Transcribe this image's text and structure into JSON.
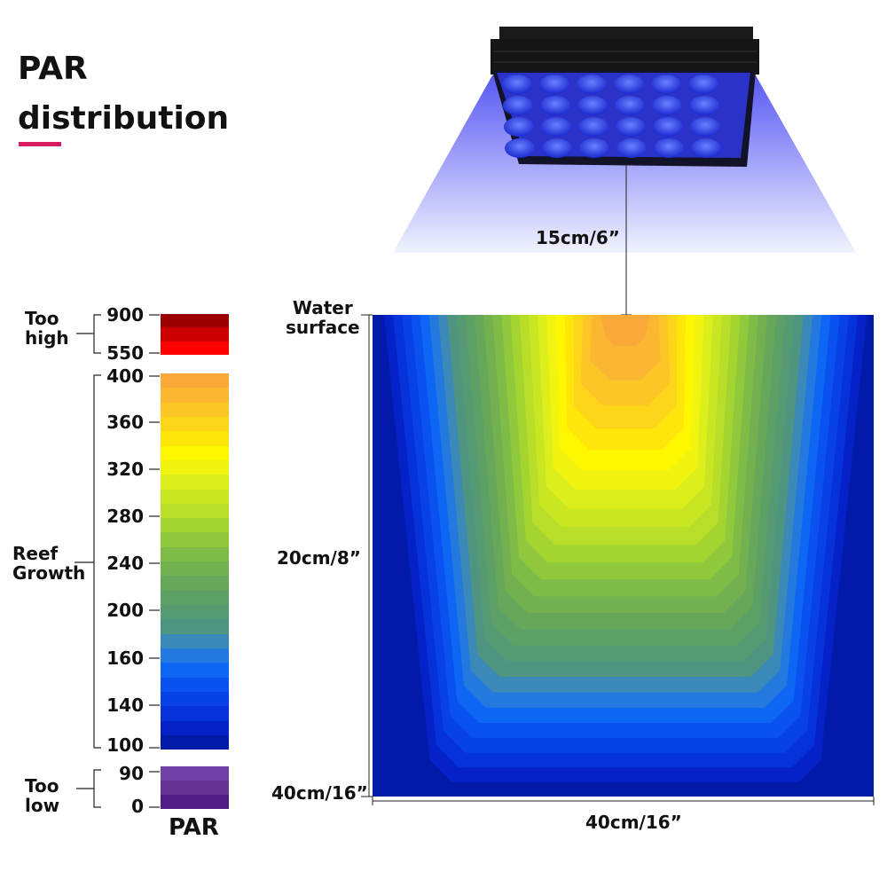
{
  "title_line1": "PAR",
  "title_line2": "distribution",
  "accent_color": "#d81b60",
  "legend": {
    "too_high": {
      "label1": "Too",
      "label2": "high",
      "max": "900",
      "min": "550",
      "colors": [
        "#9b0000",
        "#cc0000",
        "#ff0000"
      ]
    },
    "reef_growth": {
      "label1": "Reef",
      "label2": "Growth",
      "ticks": [
        "400",
        "360",
        "320",
        "280",
        "240",
        "200",
        "160",
        "140",
        "100"
      ],
      "colors": [
        "#f9a93a",
        "#fbb731",
        "#fcc627",
        "#fdd61a",
        "#ffe60a",
        "#fff700",
        "#f0f40f",
        "#dcee1b",
        "#c9e622",
        "#b9de29",
        "#a4d430",
        "#90c93b",
        "#7fbc47",
        "#72b050",
        "#66a75a",
        "#5da065",
        "#569a74",
        "#4f9480",
        "#3a89b8",
        "#2479de",
        "#0e66f5",
        "#0a52f0",
        "#0841e6",
        "#0632da",
        "#0422c8",
        "#011aa8"
      ]
    },
    "too_low": {
      "label1": "Too",
      "label2": "low",
      "max": "90",
      "min": "0",
      "colors": [
        "#7142a6",
        "#643494",
        "#4f1c84"
      ]
    },
    "unit": "PAR"
  },
  "diagram": {
    "lamp_height": "15cm/6”",
    "water_surface_1": "Water",
    "water_surface_2": "surface",
    "mid_depth": "20cm/8”",
    "bottom_depth": "40cm/16”",
    "width": "40cm/16”"
  }
}
